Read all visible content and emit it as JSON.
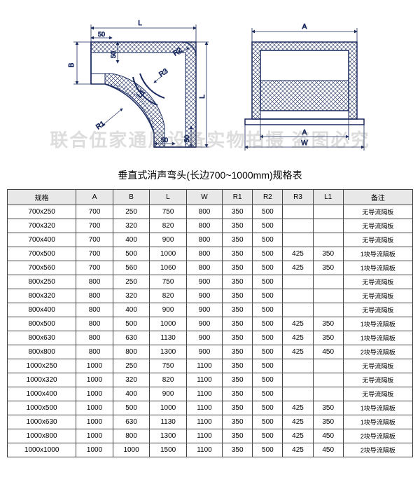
{
  "title": "垂直式消声弯头(长边700~1000mm)规格表",
  "watermark": "联合伍家通风设备实物拍摄  盗图必究",
  "diagram": {
    "labels": {
      "L": "L",
      "A": "A",
      "B": "B",
      "W": "W",
      "R1": "R1",
      "R2": "R2",
      "R3": "R3",
      "L1": "L1",
      "fifty": "50"
    },
    "stroke": "#1a2a5e",
    "dim_color": "#1a2a5e",
    "font_size": 10
  },
  "table": {
    "columns": [
      "规格",
      "A",
      "B",
      "L",
      "W",
      "R1",
      "R2",
      "R3",
      "L1",
      "备注"
    ],
    "rows": [
      [
        "700x250",
        "700",
        "250",
        "750",
        "800",
        "350",
        "500",
        "",
        "",
        "无导流隔板"
      ],
      [
        "700x320",
        "700",
        "320",
        "820",
        "800",
        "350",
        "500",
        "",
        "",
        "无导流隔板"
      ],
      [
        "700x400",
        "700",
        "400",
        "900",
        "800",
        "350",
        "500",
        "",
        "",
        "无导流隔板"
      ],
      [
        "700x500",
        "700",
        "500",
        "1000",
        "800",
        "350",
        "500",
        "425",
        "350",
        "1块导流隔板"
      ],
      [
        "700x560",
        "700",
        "560",
        "1060",
        "800",
        "350",
        "500",
        "425",
        "350",
        "1块导流隔板"
      ],
      [
        "800x250",
        "800",
        "250",
        "750",
        "900",
        "350",
        "500",
        "",
        "",
        "无导流隔板"
      ],
      [
        "800x320",
        "800",
        "320",
        "820",
        "900",
        "350",
        "500",
        "",
        "",
        "无导流隔板"
      ],
      [
        "800x400",
        "800",
        "400",
        "900",
        "900",
        "350",
        "500",
        "",
        "",
        "无导流隔板"
      ],
      [
        "800x500",
        "800",
        "500",
        "1000",
        "900",
        "350",
        "500",
        "425",
        "350",
        "1块导流隔板"
      ],
      [
        "800x630",
        "800",
        "630",
        "1130",
        "900",
        "350",
        "500",
        "425",
        "350",
        "1块导流隔板"
      ],
      [
        "800x800",
        "800",
        "800",
        "1300",
        "900",
        "350",
        "500",
        "425",
        "450",
        "2块导流隔板"
      ],
      [
        "1000x250",
        "1000",
        "250",
        "750",
        "1100",
        "350",
        "500",
        "",
        "",
        "无导流隔板"
      ],
      [
        "1000x320",
        "1000",
        "320",
        "820",
        "1100",
        "350",
        "500",
        "",
        "",
        "无导流隔板"
      ],
      [
        "1000x400",
        "1000",
        "400",
        "900",
        "1100",
        "350",
        "500",
        "",
        "",
        "无导流隔板"
      ],
      [
        "1000x500",
        "1000",
        "500",
        "1000",
        "1100",
        "350",
        "500",
        "425",
        "350",
        "1块导流隔板"
      ],
      [
        "1000x630",
        "1000",
        "630",
        "1130",
        "1100",
        "350",
        "500",
        "425",
        "350",
        "1块导流隔板"
      ],
      [
        "1000x800",
        "1000",
        "800",
        "1300",
        "1100",
        "350",
        "500",
        "425",
        "450",
        "2块导流隔板"
      ],
      [
        "1000x1000",
        "1000",
        "1000",
        "1500",
        "1100",
        "350",
        "500",
        "425",
        "450",
        "2块导流隔板"
      ]
    ],
    "header_bg": "#e8e8e8",
    "border_color": "#444444",
    "font_size": 10
  }
}
